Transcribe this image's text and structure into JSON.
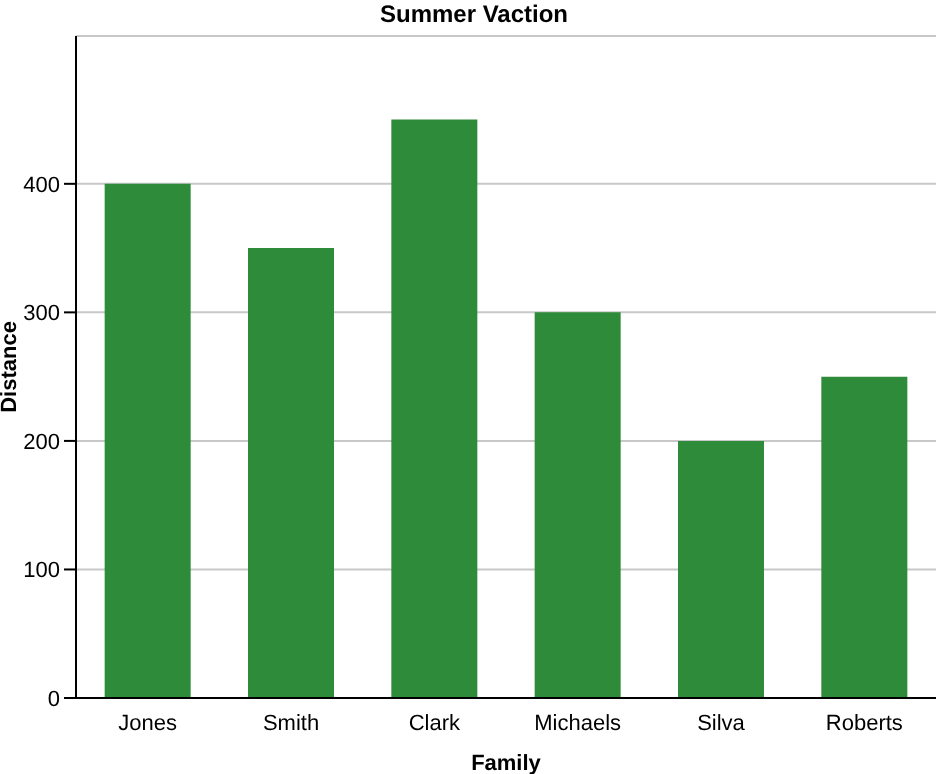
{
  "chart_data": {
    "type": "bar",
    "title": "Summer Vaction",
    "xlabel": "Family",
    "ylabel": "Distance",
    "categories": [
      "Jones",
      "Smith",
      "Clark",
      "Michaels",
      "Silva",
      "Roberts"
    ],
    "values": [
      400,
      350,
      450,
      300,
      200,
      250
    ],
    "color": "#2e8b3a",
    "ylim": [
      0,
      515
    ],
    "yticks": [
      0,
      100,
      200,
      300,
      400
    ],
    "grid": "y"
  }
}
